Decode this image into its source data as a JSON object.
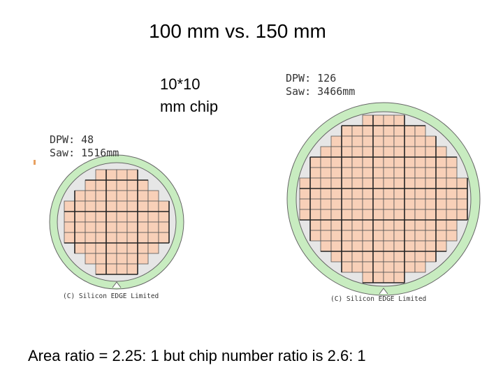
{
  "title": "100 mm vs. 150 mm",
  "chip_label": [
    "10*10",
    "mm chip"
  ],
  "wafers": [
    {
      "dpw": "DPW: 48",
      "saw": "Saw: 1516mm",
      "copyright": "(C) Silicon EDGE Limited"
    },
    {
      "dpw": "DPW: 126",
      "saw": "Saw: 3466mm",
      "copyright": "(C) Silicon EDGE Limited"
    }
  ],
  "footer": "Area ratio = 2.25: 1  but chip number ratio is 2.6: 1"
}
